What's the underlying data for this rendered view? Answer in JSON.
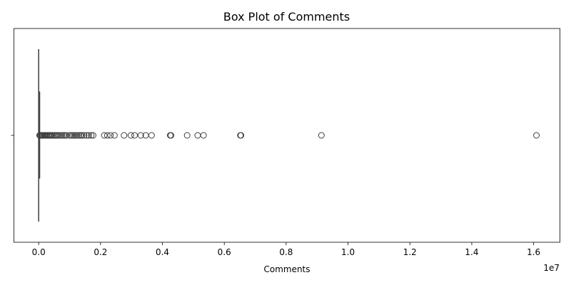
{
  "chart_data": {
    "type": "box",
    "title": "Box Plot of Comments",
    "xlabel": "Comments",
    "ylabel": "",
    "orientation": "horizontal",
    "offset_text": "1e7",
    "xlim": [
      -0.08,
      1.685
    ],
    "x_ticks": [
      0.0,
      0.2,
      0.4,
      0.6,
      0.8,
      1.0,
      1.2,
      1.4,
      1.6
    ],
    "x_tick_labels": [
      "0.0",
      "0.2",
      "0.4",
      "0.6",
      "0.8",
      "1.0",
      "1.2",
      "1.4",
      "1.6"
    ],
    "y_tick_labels": [
      ""
    ],
    "box": {
      "whisker_low": 0.0,
      "q1": 0.0002,
      "median": 0.0004,
      "q3": 0.0008,
      "whisker_high": 0.002
    },
    "outliers": [
      0.003,
      0.005,
      0.008,
      0.01,
      0.012,
      0.015,
      0.018,
      0.02,
      0.023,
      0.026,
      0.03,
      0.033,
      0.037,
      0.04,
      0.044,
      0.048,
      0.052,
      0.056,
      0.06,
      0.065,
      0.07,
      0.075,
      0.08,
      0.085,
      0.09,
      0.1,
      0.105,
      0.11,
      0.115,
      0.12,
      0.125,
      0.13,
      0.135,
      0.14,
      0.147,
      0.155,
      0.162,
      0.17,
      0.176,
      0.212,
      0.222,
      0.232,
      0.245,
      0.276,
      0.298,
      0.31,
      0.33,
      0.346,
      0.365,
      0.425,
      0.428,
      0.48,
      0.514,
      0.533,
      0.652,
      0.654,
      0.914,
      1.609
    ],
    "colors": {
      "box_fill": "#3a78b4",
      "line": "#3d3d3d",
      "outlier_edge": "#3d3d3d"
    }
  }
}
